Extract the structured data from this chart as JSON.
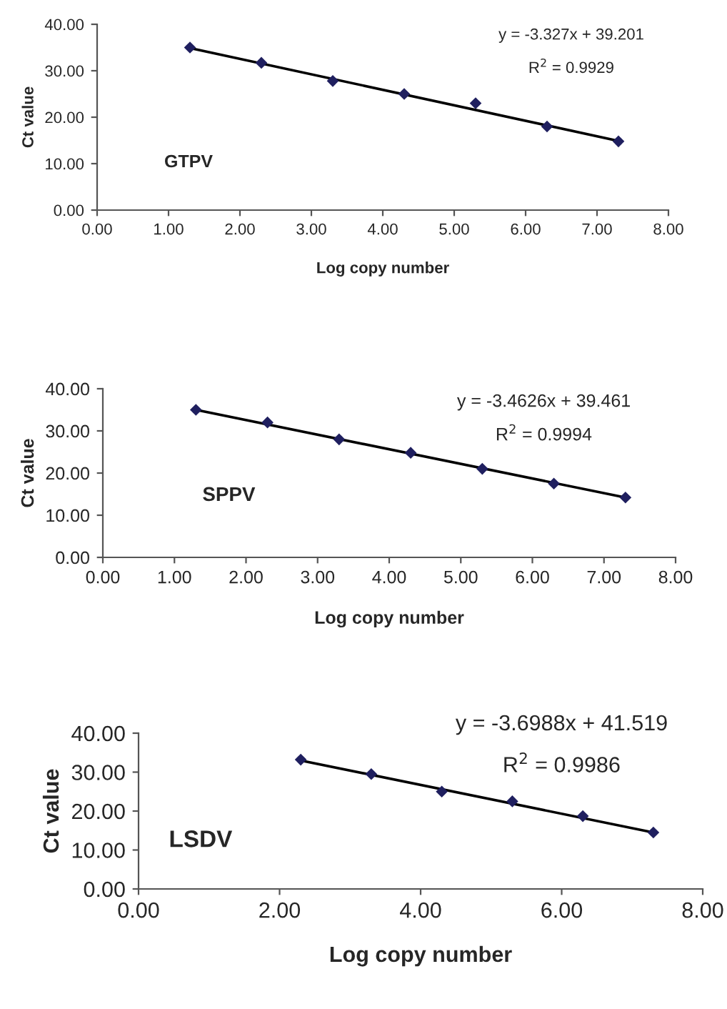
{
  "chart_data": [
    {
      "type": "scatter",
      "xlabel": "Log copy number",
      "ylabel": "Ct value",
      "marker": "diamond",
      "grid": false,
      "legend": false,
      "annotations": [
        "GTPV",
        "y = -3.327x + 39.201",
        "R$^{2}$ = 0.9929"
      ],
      "xlim": [
        0,
        8
      ],
      "ylim": [
        0,
        40
      ],
      "xticks": [
        {
          "value": 0,
          "label": "0.00"
        },
        {
          "value": 1,
          "label": "1.00"
        },
        {
          "value": 2,
          "label": "2.00"
        },
        {
          "value": 3,
          "label": "3.00"
        },
        {
          "value": 4,
          "label": "4.00"
        },
        {
          "value": 5,
          "label": "5.00"
        },
        {
          "value": 6,
          "label": "6.00"
        },
        {
          "value": 7,
          "label": "7.00"
        },
        {
          "value": 8,
          "label": "8.00"
        }
      ],
      "yticks": [
        {
          "value": 0,
          "label": "0.00"
        },
        {
          "value": 10,
          "label": "10.00"
        },
        {
          "value": 20,
          "label": "20.00"
        },
        {
          "value": 30,
          "label": "30.00"
        },
        {
          "value": 40,
          "label": "40.00"
        }
      ],
      "series": [
        {
          "color": "#1f1f5f",
          "x": [
            1.3,
            2.3,
            3.3,
            4.3,
            5.3,
            6.3,
            7.3
          ],
          "values": [
            35,
            31.7,
            27.8,
            25,
            23,
            18,
            14.8
          ]
        },
        {
          "type": "line",
          "color": "#000000",
          "marker": "none",
          "x": [
            1.3,
            7.3
          ],
          "values": [
            34.9,
            14.9
          ]
        }
      ]
    },
    {
      "type": "scatter",
      "xlabel": "Log copy number",
      "ylabel": "Ct value",
      "marker": "diamond",
      "grid": false,
      "legend": false,
      "annotations": [
        "SPPV",
        "y = -3.4626x + 39.461",
        "R$^{2}$ = 0.9994"
      ],
      "xlim": [
        0,
        8
      ],
      "ylim": [
        0,
        40
      ],
      "xticks": [
        {
          "value": 0,
          "label": "0.00"
        },
        {
          "value": 1,
          "label": "1.00"
        },
        {
          "value": 2,
          "label": "2.00"
        },
        {
          "value": 3,
          "label": "3.00"
        },
        {
          "value": 4,
          "label": "4.00"
        },
        {
          "value": 5,
          "label": "5.00"
        },
        {
          "value": 6,
          "label": "6.00"
        },
        {
          "value": 7,
          "label": "7.00"
        },
        {
          "value": 8,
          "label": "8.00"
        }
      ],
      "yticks": [
        {
          "value": 0,
          "label": "0.00"
        },
        {
          "value": 10,
          "label": "10.00"
        },
        {
          "value": 20,
          "label": "20.00"
        },
        {
          "value": 30,
          "label": "30.00"
        },
        {
          "value": 40,
          "label": "40.00"
        }
      ],
      "series": [
        {
          "color": "#1f1f5f",
          "x": [
            1.3,
            2.3,
            3.3,
            4.3,
            5.3,
            6.3,
            7.3
          ],
          "values": [
            35,
            32,
            28,
            24.8,
            21,
            17.5,
            14.2
          ]
        },
        {
          "type": "line",
          "color": "#000000",
          "marker": "none",
          "x": [
            1.3,
            7.3
          ],
          "values": [
            35,
            14.2
          ]
        }
      ]
    },
    {
      "type": "scatter",
      "xlabel": "Log copy number",
      "ylabel": "Ct value",
      "marker": "diamond",
      "grid": false,
      "legend": false,
      "annotations": [
        "LSDV",
        "y = -3.6988x + 41.519",
        "R$^{2}$ = 0.9986"
      ],
      "xlim": [
        0,
        8
      ],
      "ylim": [
        0,
        40
      ],
      "xticks": [
        {
          "value": 0,
          "label": "0.00"
        },
        {
          "value": 2,
          "label": "2.00"
        },
        {
          "value": 4,
          "label": "4.00"
        },
        {
          "value": 6,
          "label": "6.00"
        },
        {
          "value": 8,
          "label": "8.00"
        }
      ],
      "yticks": [
        {
          "value": 0,
          "label": "0.00"
        },
        {
          "value": 10,
          "label": "10.00"
        },
        {
          "value": 20,
          "label": "20.00"
        },
        {
          "value": 30,
          "label": "30.00"
        },
        {
          "value": 40,
          "label": "40.00"
        }
      ],
      "series": [
        {
          "color": "#1f1f5f",
          "x": [
            2.3,
            3.3,
            4.3,
            5.3,
            6.3,
            7.3
          ],
          "values": [
            33.2,
            29.5,
            25,
            22.5,
            18.7,
            14.5
          ]
        },
        {
          "type": "line",
          "color": "#000000",
          "marker": "none",
          "x": [
            2.3,
            7.3
          ],
          "values": [
            33,
            14.5
          ]
        }
      ]
    }
  ]
}
